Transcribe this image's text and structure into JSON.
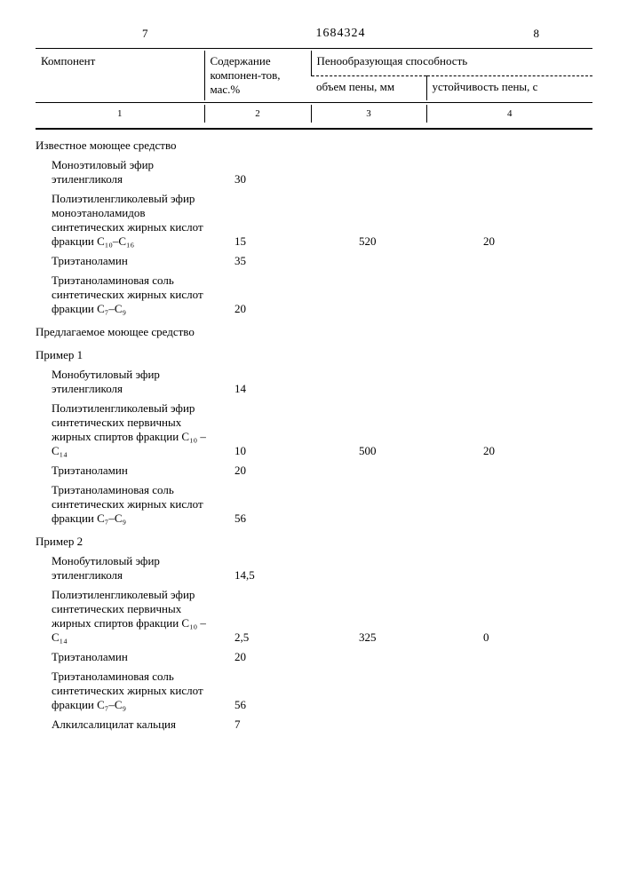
{
  "page_left": "7",
  "doc_number": "1684324",
  "page_right": "8",
  "header": {
    "col1": "Компонент",
    "col2": "Содержание компонен-тов, мас.%",
    "col34_top": "Пенообразующая способность",
    "col3": "объем пены, мм",
    "col4": "устойчивость пены, с",
    "num1": "1",
    "num2": "2",
    "num3": "3",
    "num4": "4"
  },
  "sections": [
    {
      "title": "Известное моющее средство",
      "rows": [
        {
          "name": "Моноэтиловый эфир этиленгликоля",
          "v2": "30",
          "v3": "",
          "v4": ""
        },
        {
          "name": "Полиэтиленгликолевый эфир моноэтаноламидов синтетических жирных кислот фракции C₁₀–C₁₆",
          "v2": "15",
          "v3": "520",
          "v4": "20"
        },
        {
          "name": "Триэтаноламин",
          "v2": "35",
          "v3": "",
          "v4": ""
        },
        {
          "name": "Триэтаноламиновая соль синтетических жирных кислот фракции C₇–C₉",
          "v2": "20",
          "v3": "",
          "v4": ""
        }
      ]
    },
    {
      "title": "Предлагаемое моющее средство",
      "rows": []
    },
    {
      "title": "Пример 1",
      "rows": [
        {
          "name": "Монобутиловый эфир этиленгликоля",
          "v2": "14",
          "v3": "",
          "v4": ""
        },
        {
          "name": "Полиэтиленгликолевый эфир синтетических первичных жирных спиртов фракции C₁₀ – C₁₄",
          "v2": "10",
          "v3": "500",
          "v4": "20"
        },
        {
          "name": "Триэтаноламин",
          "v2": "20",
          "v3": "",
          "v4": ""
        },
        {
          "name": "Триэтаноламиновая соль синтетических жирных кислот фракции C₇–C₉",
          "v2": "56",
          "v3": "",
          "v4": ""
        }
      ]
    },
    {
      "title": "Пример 2",
      "rows": [
        {
          "name": "Монобутиловый эфир этиленгликоля",
          "v2": "14,5",
          "v3": "",
          "v4": ""
        },
        {
          "name": "Полиэтиленгликолевый эфир синтетических первичных жирных спиртов фракции C₁₀ – C₁₄",
          "v2": "2,5",
          "v3": "325",
          "v4": "0"
        },
        {
          "name": "Триэтаноламин",
          "v2": "20",
          "v3": "",
          "v4": ""
        },
        {
          "name": "Триэтаноламиновая соль синтетических жирных кислот фракции C₇–C₉",
          "v2": "56",
          "v3": "",
          "v4": ""
        },
        {
          "name": "Алкилсалицилат кальция",
          "v2": "7",
          "v3": "",
          "v4": ""
        }
      ]
    }
  ]
}
